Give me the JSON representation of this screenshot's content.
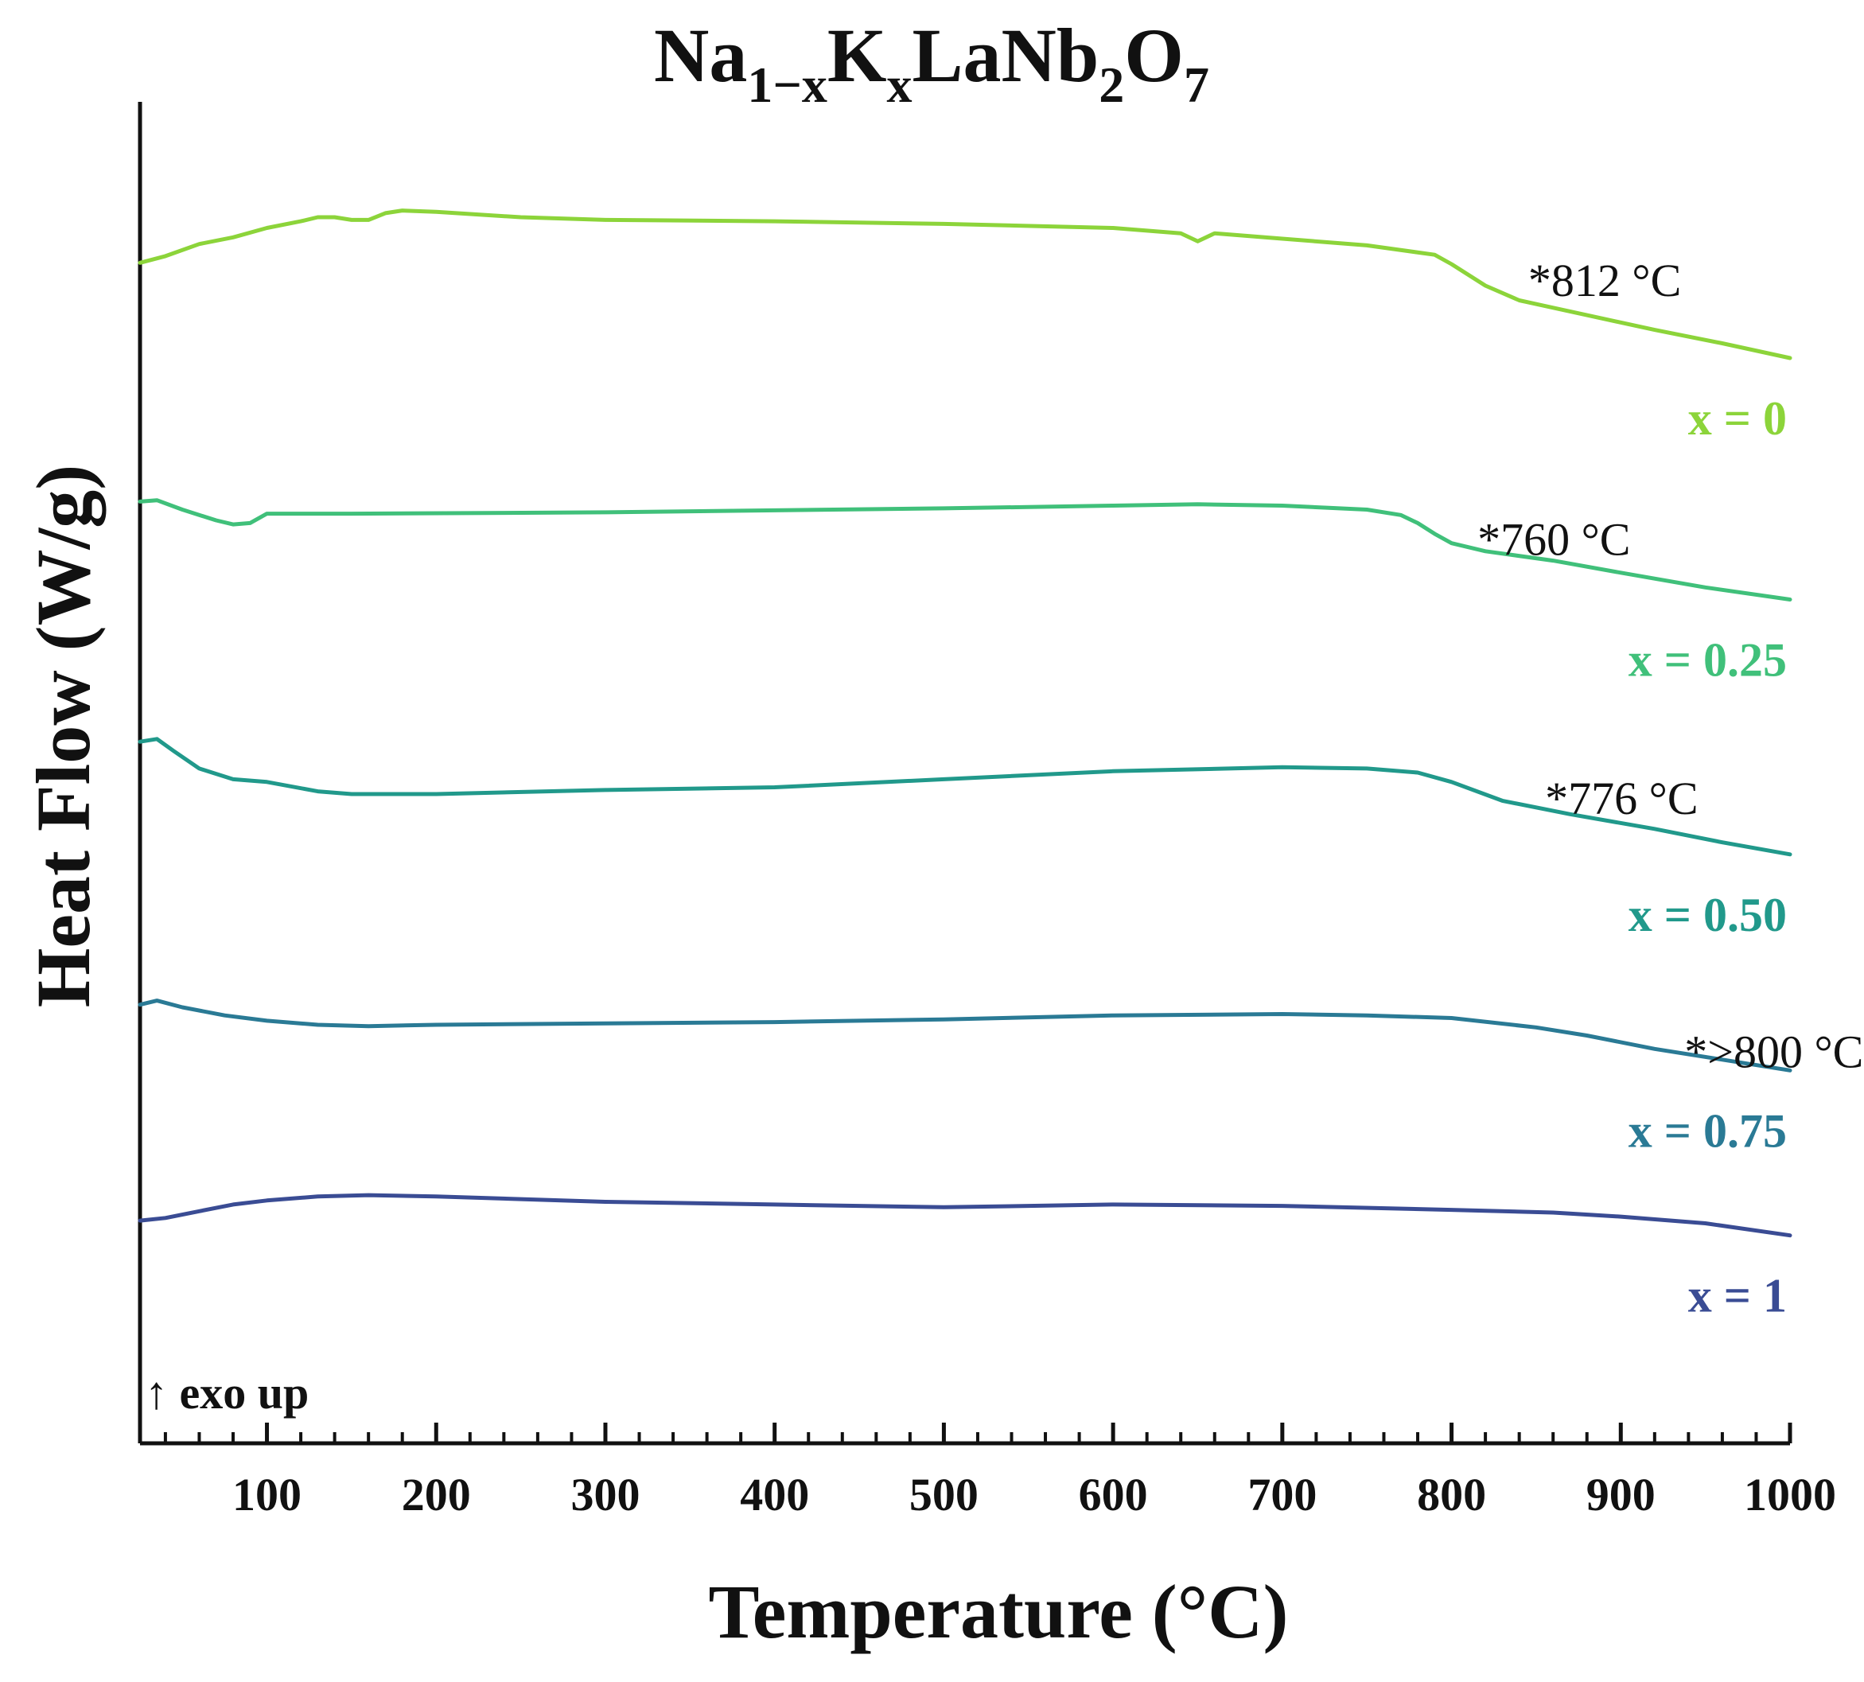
{
  "chart_data": {
    "type": "line",
    "title": {
      "base1": "Na",
      "sub1": "1−x",
      "base2": "K",
      "sub2": "x",
      "base3": "LaNb",
      "sub3": "2",
      "base4": "O",
      "sub4": "7"
    },
    "xlabel": "Temperature (°C)",
    "ylabel": "Heat Flow (W/g)",
    "xlim": [
      25,
      1000
    ],
    "ylim": [
      0,
      100
    ],
    "x_ticks": [
      100,
      200,
      300,
      400,
      500,
      600,
      700,
      800,
      900,
      1000
    ],
    "x_minor_step": 20,
    "y_ticks_shown": false,
    "exo_note": "↑ exo up",
    "series": [
      {
        "name": "x = 0",
        "color": "#8cd43a",
        "annotation": "*812 °C",
        "points": [
          [
            25,
            88.0
          ],
          [
            40,
            88.5
          ],
          [
            60,
            89.4
          ],
          [
            80,
            89.9
          ],
          [
            100,
            90.6
          ],
          [
            120,
            91.1
          ],
          [
            130,
            91.4
          ],
          [
            140,
            91.4
          ],
          [
            150,
            91.2
          ],
          [
            160,
            91.2
          ],
          [
            170,
            91.7
          ],
          [
            180,
            91.9
          ],
          [
            200,
            91.8
          ],
          [
            250,
            91.4
          ],
          [
            300,
            91.2
          ],
          [
            400,
            91.1
          ],
          [
            500,
            90.9
          ],
          [
            600,
            90.6
          ],
          [
            640,
            90.2
          ],
          [
            650,
            89.6
          ],
          [
            660,
            90.2
          ],
          [
            700,
            89.8
          ],
          [
            750,
            89.3
          ],
          [
            790,
            88.6
          ],
          [
            800,
            87.9
          ],
          [
            820,
            86.3
          ],
          [
            840,
            85.2
          ],
          [
            880,
            84.1
          ],
          [
            920,
            83.0
          ],
          [
            960,
            82.0
          ],
          [
            1000,
            80.9
          ]
        ]
      },
      {
        "name": "x = 0.25",
        "color": "#40c07a",
        "annotation": "*760 °C",
        "points": [
          [
            25,
            70.2
          ],
          [
            35,
            70.3
          ],
          [
            50,
            69.6
          ],
          [
            70,
            68.8
          ],
          [
            80,
            68.5
          ],
          [
            90,
            68.6
          ],
          [
            100,
            69.3
          ],
          [
            150,
            69.3
          ],
          [
            300,
            69.4
          ],
          [
            500,
            69.7
          ],
          [
            600,
            69.9
          ],
          [
            650,
            70.0
          ],
          [
            700,
            69.9
          ],
          [
            750,
            69.6
          ],
          [
            770,
            69.2
          ],
          [
            780,
            68.6
          ],
          [
            790,
            67.8
          ],
          [
            800,
            67.1
          ],
          [
            820,
            66.5
          ],
          [
            860,
            65.8
          ],
          [
            900,
            64.9
          ],
          [
            950,
            63.8
          ],
          [
            1000,
            62.9
          ]
        ]
      },
      {
        "name": "x = 0.50",
        "color": "#21998b",
        "annotation": "*776 °C",
        "points": [
          [
            25,
            52.3
          ],
          [
            35,
            52.5
          ],
          [
            45,
            51.6
          ],
          [
            60,
            50.3
          ],
          [
            80,
            49.5
          ],
          [
            100,
            49.3
          ],
          [
            130,
            48.6
          ],
          [
            150,
            48.4
          ],
          [
            200,
            48.4
          ],
          [
            300,
            48.7
          ],
          [
            400,
            48.9
          ],
          [
            500,
            49.5
          ],
          [
            600,
            50.1
          ],
          [
            700,
            50.4
          ],
          [
            750,
            50.3
          ],
          [
            780,
            50.0
          ],
          [
            800,
            49.3
          ],
          [
            830,
            47.9
          ],
          [
            870,
            46.9
          ],
          [
            920,
            45.8
          ],
          [
            960,
            44.8
          ],
          [
            1000,
            43.9
          ]
        ]
      },
      {
        "name": "x = 0.75",
        "color": "#2a7a95",
        "annotation": "*>800 °C",
        "points": [
          [
            25,
            32.7
          ],
          [
            35,
            33.0
          ],
          [
            50,
            32.5
          ],
          [
            75,
            31.9
          ],
          [
            100,
            31.5
          ],
          [
            130,
            31.2
          ],
          [
            160,
            31.1
          ],
          [
            200,
            31.2
          ],
          [
            300,
            31.3
          ],
          [
            400,
            31.4
          ],
          [
            500,
            31.6
          ],
          [
            600,
            31.9
          ],
          [
            700,
            32.0
          ],
          [
            750,
            31.9
          ],
          [
            800,
            31.7
          ],
          [
            850,
            31.0
          ],
          [
            880,
            30.4
          ],
          [
            920,
            29.4
          ],
          [
            960,
            28.6
          ],
          [
            1000,
            27.8
          ]
        ]
      },
      {
        "name": "x = 1",
        "color": "#3a4c94",
        "annotation": "",
        "points": [
          [
            25,
            16.6
          ],
          [
            40,
            16.8
          ],
          [
            60,
            17.3
          ],
          [
            80,
            17.8
          ],
          [
            100,
            18.1
          ],
          [
            130,
            18.4
          ],
          [
            160,
            18.5
          ],
          [
            200,
            18.4
          ],
          [
            250,
            18.2
          ],
          [
            300,
            18.0
          ],
          [
            400,
            17.8
          ],
          [
            500,
            17.6
          ],
          [
            600,
            17.8
          ],
          [
            700,
            17.7
          ],
          [
            800,
            17.4
          ],
          [
            860,
            17.2
          ],
          [
            900,
            16.9
          ],
          [
            950,
            16.4
          ],
          [
            1000,
            15.5
          ]
        ]
      }
    ]
  }
}
